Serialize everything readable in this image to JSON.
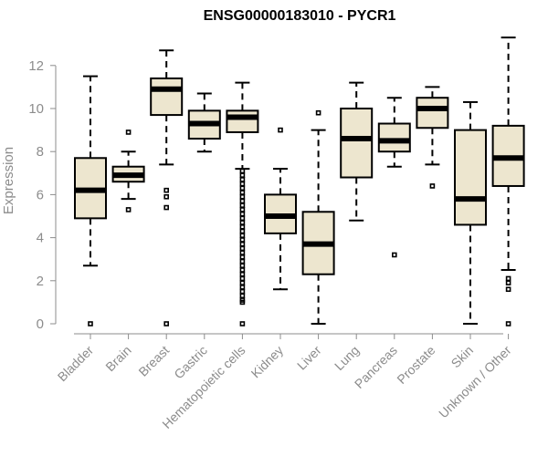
{
  "chart_data": {
    "type": "boxplot",
    "title": "ENSG00000183010 - PYCR1",
    "xlabel": "",
    "ylabel": "Expression",
    "ylim": [
      0,
      13.3
    ],
    "yticks": [
      0,
      2,
      4,
      6,
      8,
      10,
      12
    ],
    "box_color": "#ede6cf",
    "categories": [
      "Bladder",
      "Brain",
      "Breast",
      "Gastric",
      "Hematopoietic cells",
      "Kidney",
      "Liver",
      "Lung",
      "Pancreas",
      "Prostate",
      "Skin",
      "Unknown / Other"
    ],
    "boxes": [
      {
        "name": "Bladder",
        "whislo": 2.7,
        "q1": 4.9,
        "med": 6.2,
        "q3": 7.7,
        "whishi": 11.5,
        "outliers": [
          0.0
        ]
      },
      {
        "name": "Brain",
        "whislo": 5.8,
        "q1": 6.6,
        "med": 6.9,
        "q3": 7.3,
        "whishi": 8.0,
        "outliers": [
          8.9,
          5.3
        ]
      },
      {
        "name": "Breast",
        "whislo": 7.4,
        "q1": 9.7,
        "med": 10.9,
        "q3": 11.4,
        "whishi": 12.7,
        "outliers": [
          6.2,
          5.9,
          5.4,
          0.0
        ]
      },
      {
        "name": "Gastric",
        "whislo": 8.0,
        "q1": 8.6,
        "med": 9.3,
        "q3": 9.9,
        "whishi": 10.7,
        "outliers": []
      },
      {
        "name": "Hematopoietic cells",
        "whislo": 7.2,
        "q1": 8.9,
        "med": 9.6,
        "q3": 9.9,
        "whishi": 11.2,
        "outliers": [
          7.1,
          6.9,
          6.7,
          6.5,
          6.3,
          6.1,
          5.9,
          5.7,
          5.5,
          5.3,
          5.1,
          4.9,
          4.7,
          4.5,
          4.3,
          4.1,
          3.9,
          3.7,
          3.5,
          3.3,
          3.1,
          2.9,
          2.7,
          2.5,
          2.3,
          2.1,
          1.9,
          1.7,
          1.5,
          1.3,
          1.1,
          1.0,
          0.0
        ]
      },
      {
        "name": "Kidney",
        "whislo": 1.6,
        "q1": 4.2,
        "med": 5.0,
        "q3": 6.0,
        "whishi": 7.2,
        "outliers": [
          9.0
        ]
      },
      {
        "name": "Liver",
        "whislo": 0.0,
        "q1": 2.3,
        "med": 3.7,
        "q3": 5.2,
        "whishi": 9.0,
        "outliers": [
          9.8
        ]
      },
      {
        "name": "Lung",
        "whislo": 4.8,
        "q1": 6.8,
        "med": 8.6,
        "q3": 10.0,
        "whishi": 11.2,
        "outliers": []
      },
      {
        "name": "Pancreas",
        "whislo": 7.3,
        "q1": 8.0,
        "med": 8.5,
        "q3": 9.3,
        "whishi": 10.5,
        "outliers": [
          3.2
        ]
      },
      {
        "name": "Prostate",
        "whislo": 7.4,
        "q1": 9.1,
        "med": 10.0,
        "q3": 10.5,
        "whishi": 11.0,
        "outliers": [
          6.4
        ]
      },
      {
        "name": "Skin",
        "whislo": 0.0,
        "q1": 4.6,
        "med": 5.8,
        "q3": 9.0,
        "whishi": 10.3,
        "outliers": []
      },
      {
        "name": "Unknown / Other",
        "whislo": 2.5,
        "q1": 6.4,
        "med": 7.7,
        "q3": 9.2,
        "whishi": 13.3,
        "outliers": [
          2.1,
          1.9,
          1.6,
          0.0
        ]
      }
    ]
  }
}
